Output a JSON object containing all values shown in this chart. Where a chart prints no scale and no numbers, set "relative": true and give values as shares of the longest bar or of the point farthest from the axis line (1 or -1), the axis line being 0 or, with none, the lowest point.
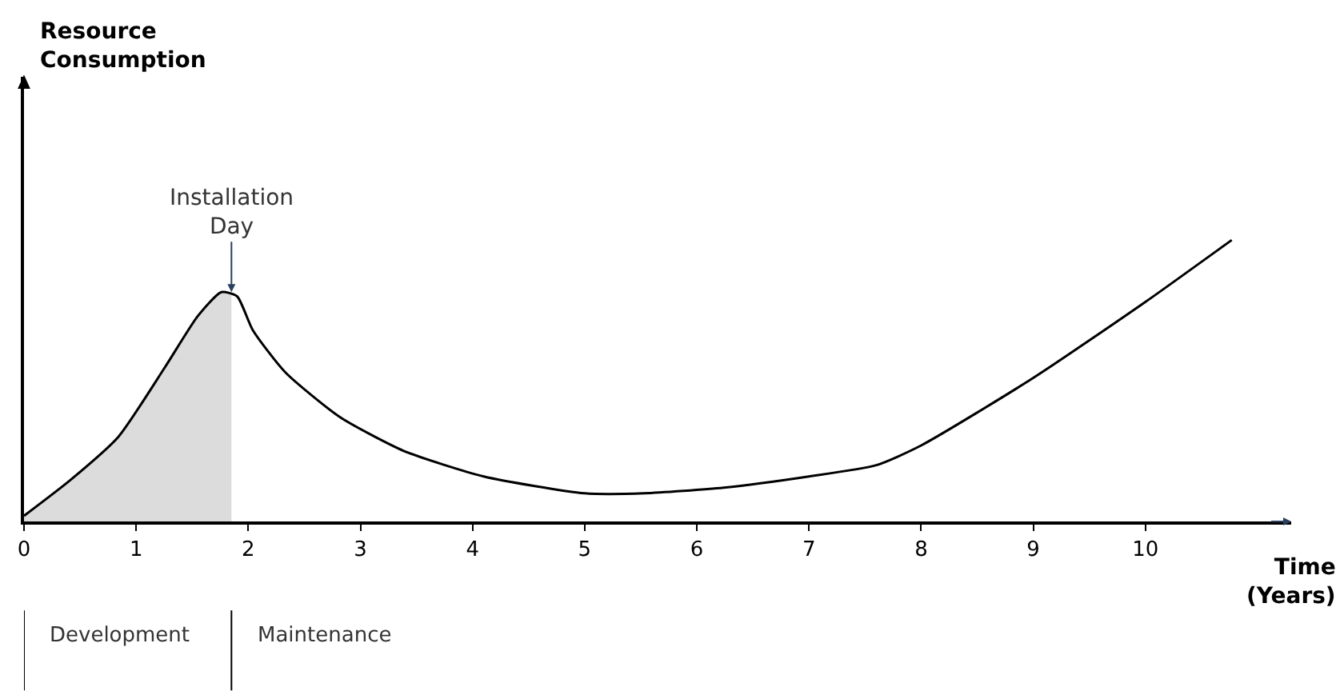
{
  "chart_data": {
    "type": "line",
    "relative": true,
    "xlabel": "Time\n(Years)",
    "xlim": [
      0,
      11.3
    ],
    "xticks": [
      0,
      1,
      2,
      3,
      4,
      5,
      6,
      7,
      8,
      9,
      10
    ],
    "marker": "none",
    "line_style": "solid",
    "series": [
      {
        "type": "area",
        "color": "#dcdcdc",
        "x": [
          0,
          0.41,
          0.84,
          1.26,
          1.55,
          1.76,
          1.85
        ],
        "values": [
          0.02,
          0.146,
          0.3,
          0.55,
          0.73,
          0.815,
          0.81
        ]
      },
      {
        "color": "#000000",
        "x": [
          0,
          0.41,
          0.84,
          1.26,
          1.55,
          1.76,
          1.9,
          2.04,
          2.33,
          2.82,
          3.39,
          4.1,
          5.0,
          5.53,
          6.24,
          7.0,
          7.6,
          8.0,
          9.0,
          10.0,
          10.77
        ],
        "values": [
          0.02,
          0.146,
          0.3,
          0.55,
          0.73,
          0.815,
          0.8,
          0.68,
          0.53,
          0.37,
          0.25,
          0.16,
          0.1,
          0.1,
          0.12,
          0.16,
          0.2,
          0.27,
          0.51,
          0.78,
          1.0
        ]
      }
    ],
    "annotations": [
      "Resource\nConsumption",
      {
        "text": "Installation\nDay",
        "x": 1.85,
        "y": 0.815
      },
      "Development",
      "Maintenance"
    ]
  }
}
